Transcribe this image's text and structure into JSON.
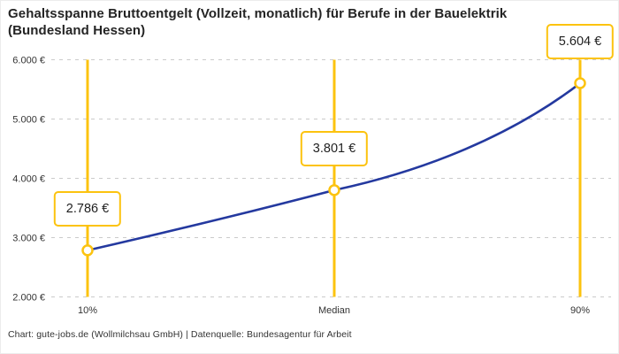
{
  "title": {
    "line1": "Gehaltsspanne Bruttoentgelt (Vollzeit, monatlich) für Berufe in der Bauelektrik",
    "line2": "(Bundesland Hessen)"
  },
  "chart_data": {
    "type": "line",
    "title": "Gehaltsspanne Bruttoentgelt (Vollzeit, monatlich) für Berufe in der Bauelektrik (Bundesland Hessen)",
    "categories": [
      "10%",
      "Median",
      "90%"
    ],
    "values": [
      2786,
      3801,
      5604
    ],
    "value_labels": [
      "2.786 €",
      "3.801 €",
      "5.604 €"
    ],
    "xlabel": "",
    "ylabel": "",
    "ylim": [
      2000,
      6000
    ],
    "yticks": [
      2000,
      3000,
      4000,
      5000,
      6000
    ],
    "ytick_labels": [
      "2.000 €",
      "3.000 €",
      "4.000 €",
      "5.000 €",
      "6.000 €"
    ],
    "grid": "horizontal-dashed",
    "legend": "none",
    "marker": "open-circle",
    "colors": {
      "curve": "#24399f",
      "accent_yellow": "#fcc30f",
      "gridline": "#cbcbcb",
      "marker_fill": "#ffffff"
    }
  },
  "footer": {
    "credit": "Chart: gute-jobs.de (Wollmilchsau GmbH) | Datenquelle: Bundesagentur für Arbeit"
  }
}
